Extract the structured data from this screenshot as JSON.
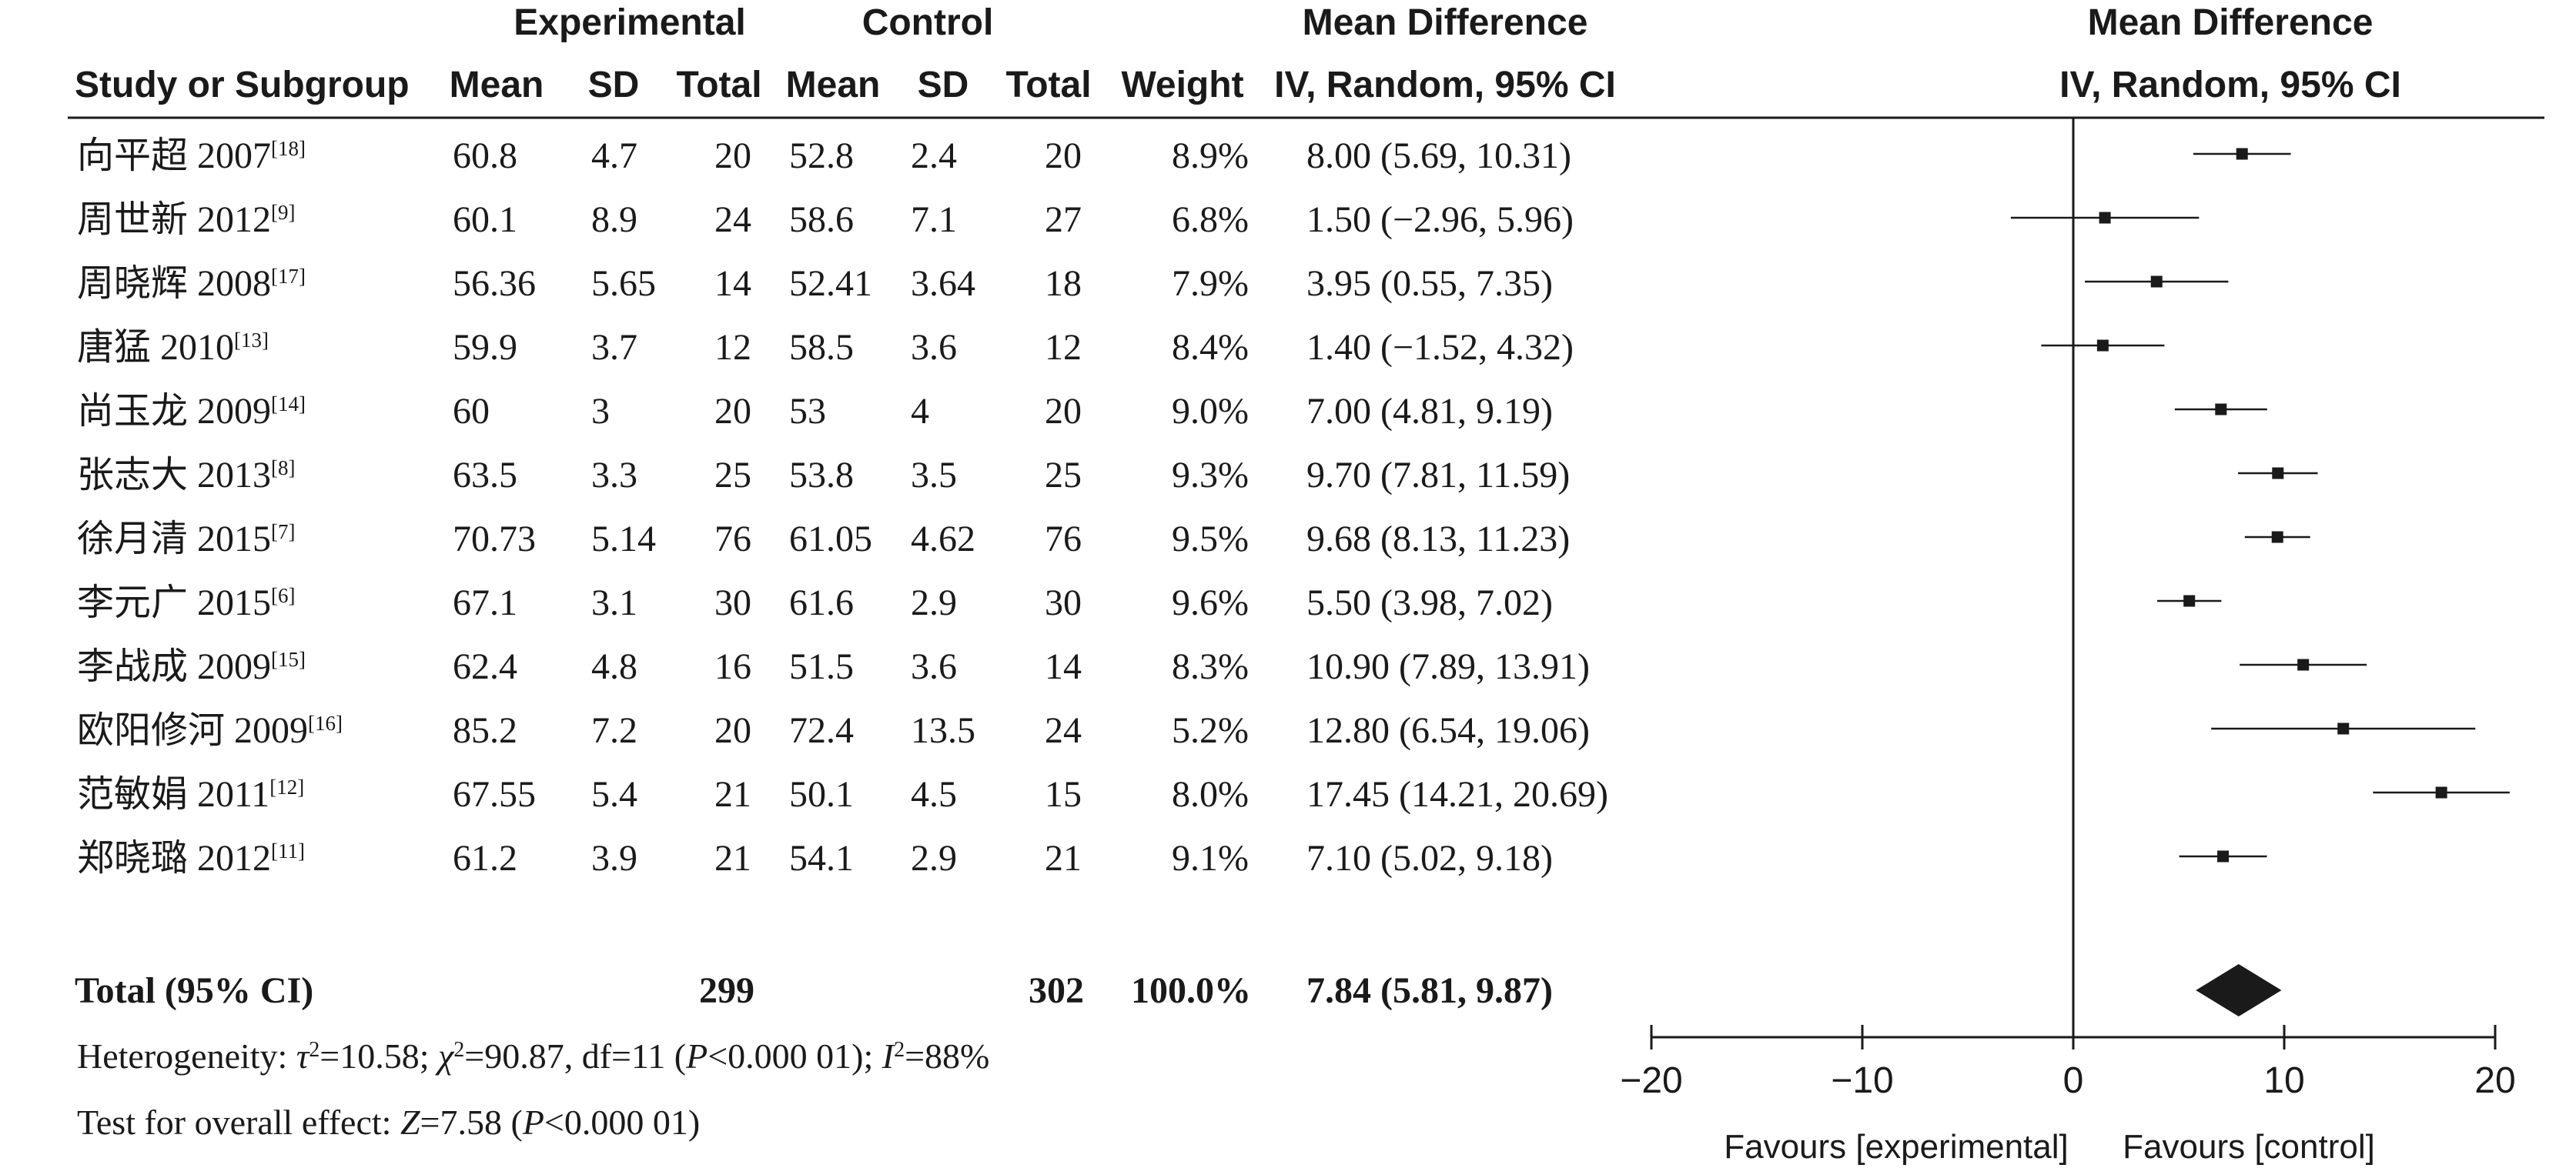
{
  "headers": {
    "experimental_group": "Experimental",
    "control_group": "Control",
    "md_group": "Mean Difference",
    "study": "Study or Subgroup",
    "mean": "Mean",
    "sd": "SD",
    "total": "Total",
    "weight": "Weight",
    "ci_method": "IV, Random, 95% CI",
    "plot_title": "Mean Difference",
    "plot_method": "IV, Random, 95% CI"
  },
  "chart_data": {
    "type": "forest",
    "xlim": [
      -20,
      20
    ],
    "xticks": [
      -20,
      -10,
      0,
      10,
      20
    ],
    "xtick_labels": [
      "−20",
      "−10",
      "0",
      "10",
      "20"
    ],
    "favours_left": "Favours [experimental]",
    "favours_right": "Favours [control]",
    "studies": [
      {
        "name": "向平超 2007",
        "ref": "[18]",
        "exp_mean": "60.8",
        "exp_sd": "4.7",
        "exp_total": "20",
        "ctl_mean": "52.8",
        "ctl_sd": "2.4",
        "ctl_total": "20",
        "weight": "8.9%",
        "ci_text": "8.00 (5.69, 10.31)",
        "md": 8.0,
        "lo": 5.69,
        "hi": 10.31
      },
      {
        "name": "周世新 2012",
        "ref": "[9]",
        "exp_mean": "60.1",
        "exp_sd": "8.9",
        "exp_total": "24",
        "ctl_mean": "58.6",
        "ctl_sd": "7.1",
        "ctl_total": "27",
        "weight": "6.8%",
        "ci_text": "1.50 (−2.96, 5.96)",
        "md": 1.5,
        "lo": -2.96,
        "hi": 5.96
      },
      {
        "name": "周晓辉 2008",
        "ref": "[17]",
        "exp_mean": "56.36",
        "exp_sd": "5.65",
        "exp_total": "14",
        "ctl_mean": "52.41",
        "ctl_sd": "3.64",
        "ctl_total": "18",
        "weight": "7.9%",
        "ci_text": "3.95 (0.55, 7.35)",
        "md": 3.95,
        "lo": 0.55,
        "hi": 7.35
      },
      {
        "name": "唐猛 2010",
        "ref": "[13]",
        "exp_mean": "59.9",
        "exp_sd": "3.7",
        "exp_total": "12",
        "ctl_mean": "58.5",
        "ctl_sd": "3.6",
        "ctl_total": "12",
        "weight": "8.4%",
        "ci_text": "1.40 (−1.52, 4.32)",
        "md": 1.4,
        "lo": -1.52,
        "hi": 4.32
      },
      {
        "name": "尚玉龙 2009",
        "ref": "[14]",
        "exp_mean": "60",
        "exp_sd": "3",
        "exp_total": "20",
        "ctl_mean": "53",
        "ctl_sd": "4",
        "ctl_total": "20",
        "weight": "9.0%",
        "ci_text": "7.00 (4.81, 9.19)",
        "md": 7.0,
        "lo": 4.81,
        "hi": 9.19
      },
      {
        "name": "张志大 2013",
        "ref": "[8]",
        "exp_mean": "63.5",
        "exp_sd": "3.3",
        "exp_total": "25",
        "ctl_mean": "53.8",
        "ctl_sd": "3.5",
        "ctl_total": "25",
        "weight": "9.3%",
        "ci_text": "9.70 (7.81, 11.59)",
        "md": 9.7,
        "lo": 7.81,
        "hi": 11.59
      },
      {
        "name": "徐月清 2015",
        "ref": "[7]",
        "exp_mean": "70.73",
        "exp_sd": "5.14",
        "exp_total": "76",
        "ctl_mean": "61.05",
        "ctl_sd": "4.62",
        "ctl_total": "76",
        "weight": "9.5%",
        "ci_text": "9.68 (8.13, 11.23)",
        "md": 9.68,
        "lo": 8.13,
        "hi": 11.23
      },
      {
        "name": "李元广 2015",
        "ref": "[6]",
        "exp_mean": "67.1",
        "exp_sd": "3.1",
        "exp_total": "30",
        "ctl_mean": "61.6",
        "ctl_sd": "2.9",
        "ctl_total": "30",
        "weight": "9.6%",
        "ci_text": "5.50 (3.98, 7.02)",
        "md": 5.5,
        "lo": 3.98,
        "hi": 7.02
      },
      {
        "name": "李战成 2009",
        "ref": "[15]",
        "exp_mean": "62.4",
        "exp_sd": "4.8",
        "exp_total": "16",
        "ctl_mean": "51.5",
        "ctl_sd": "3.6",
        "ctl_total": "14",
        "weight": "8.3%",
        "ci_text": "10.90 (7.89, 13.91)",
        "md": 10.9,
        "lo": 7.89,
        "hi": 13.91
      },
      {
        "name": "欧阳修河 2009",
        "ref": "[16]",
        "exp_mean": "85.2",
        "exp_sd": "7.2",
        "exp_total": "20",
        "ctl_mean": "72.4",
        "ctl_sd": "13.5",
        "ctl_total": "24",
        "weight": "5.2%",
        "ci_text": "12.80 (6.54, 19.06)",
        "md": 12.8,
        "lo": 6.54,
        "hi": 19.06
      },
      {
        "name": "范敏娟 2011",
        "ref": "[12]",
        "exp_mean": "67.55",
        "exp_sd": "5.4",
        "exp_total": "21",
        "ctl_mean": "50.1",
        "ctl_sd": "4.5",
        "ctl_total": "15",
        "weight": "8.0%",
        "ci_text": "17.45 (14.21, 20.69)",
        "md": 17.45,
        "lo": 14.21,
        "hi": 20.69
      },
      {
        "name": "郑晓璐 2012",
        "ref": "[11]",
        "exp_mean": "61.2",
        "exp_sd": "3.9",
        "exp_total": "21",
        "ctl_mean": "54.1",
        "ctl_sd": "2.9",
        "ctl_total": "21",
        "weight": "9.1%",
        "ci_text": "7.10 (5.02, 9.18)",
        "md": 7.1,
        "lo": 5.02,
        "hi": 9.18
      }
    ],
    "total": {
      "label": "Total (95% CI)",
      "exp_total": "299",
      "ctl_total": "302",
      "weight": "100.0%",
      "ci_text": "7.84 (5.81, 9.87)",
      "md": 7.84,
      "lo": 5.81,
      "hi": 9.87
    },
    "heterogeneity": {
      "prefix": "Heterogeneity: ",
      "tau2_sym": "τ",
      "tau2_value": "=10.58; ",
      "chi2_sym": "χ",
      "chi2_value": "=90.87, df=11 (",
      "p_sym": "P",
      "p_value": "<0.000 01); ",
      "i2_sym": "I",
      "i2_value": "=88%"
    },
    "overall_effect": {
      "prefix": "Test for overall effect: ",
      "z_sym": "Z",
      "z_value": "=7.58 (",
      "p_sym": "P",
      "p_value": "<0.000 01)"
    }
  }
}
